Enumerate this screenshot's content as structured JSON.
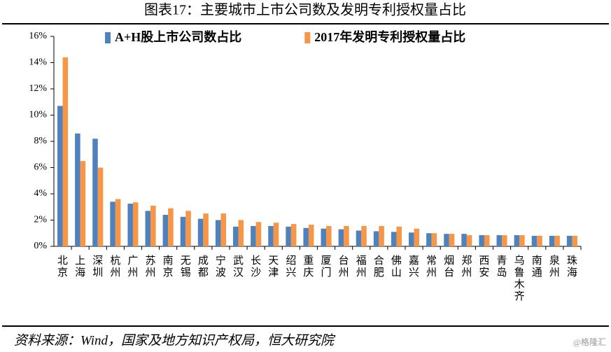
{
  "chart_data": {
    "type": "bar",
    "title": "图表17：主要城市上市公司数及发明专利授权量占比",
    "source": "资料来源：Wind，国家及地方知识产权局，恒大研究院",
    "watermark": "@格隆汇",
    "categories": [
      "北京",
      "上海",
      "深圳",
      "杭州",
      "广州",
      "苏州",
      "南京",
      "无锡",
      "成都",
      "宁波",
      "武汉",
      "长沙",
      "天津",
      "绍兴",
      "重庆",
      "厦门",
      "台州",
      "福州",
      "合肥",
      "佛山",
      "嘉兴",
      "常州",
      "烟台",
      "郑州",
      "西安",
      "青岛",
      "乌鲁木齐",
      "南通",
      "泉州",
      "珠海"
    ],
    "series": [
      {
        "name": "A+H股上市公司数占比",
        "color": "#4f81bd",
        "values": [
          10.7,
          8.6,
          8.2,
          3.4,
          3.25,
          2.7,
          2.4,
          2.25,
          2.1,
          2.0,
          1.5,
          1.55,
          1.55,
          1.5,
          1.4,
          1.35,
          1.3,
          1.2,
          1.15,
          1.1,
          1.05,
          1.0,
          0.95,
          0.95,
          0.85,
          0.85,
          0.85,
          0.8,
          0.8,
          0.8
        ]
      },
      {
        "name": "2017年发明专利授权量占比",
        "color": "#f79646",
        "values": [
          14.4,
          6.5,
          6.0,
          3.6,
          3.35,
          3.1,
          2.9,
          2.7,
          2.5,
          2.5,
          2.0,
          1.85,
          1.8,
          1.7,
          1.65,
          1.55,
          1.55,
          1.55,
          1.55,
          1.5,
          1.35,
          1.0,
          0.95,
          0.85,
          0.85,
          0.85,
          0.85,
          0.8,
          0.8,
          0.8
        ]
      }
    ],
    "ylim": [
      0,
      16
    ],
    "yticks": [
      {
        "value": 0,
        "label": "0%"
      },
      {
        "value": 2,
        "label": "2%"
      },
      {
        "value": 4,
        "label": "4%"
      },
      {
        "value": 6,
        "label": "6%"
      },
      {
        "value": 8,
        "label": "8%"
      },
      {
        "value": 10,
        "label": "10%"
      },
      {
        "value": 12,
        "label": "12%"
      },
      {
        "value": 14,
        "label": "14%"
      },
      {
        "value": 16,
        "label": "16%"
      }
    ],
    "legend": "top"
  }
}
